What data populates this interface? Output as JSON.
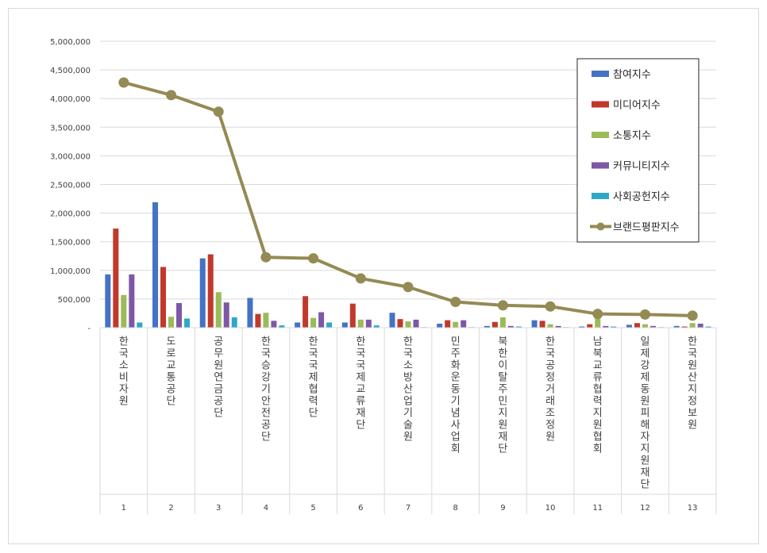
{
  "chart_data": {
    "type": "bar",
    "categories": [
      "한국소비자원",
      "도로교통공단",
      "공무원연금공단",
      "한국승강기안전공단",
      "한국국제협력단",
      "한국국제교류재단",
      "한국소방산업기술원",
      "민주화운동기념사업회",
      "북한이탈주민지원재단",
      "한국공정거래조정원",
      "남북교류협력지원협회",
      "일제강제동원피해자지원재단",
      "한국원산지정보원"
    ],
    "ranks": [
      "1",
      "2",
      "3",
      "4",
      "5",
      "6",
      "7",
      "8",
      "9",
      "10",
      "11",
      "12",
      "13"
    ],
    "y_ticks": [
      "-",
      "500,000",
      "1,000,000",
      "1,500,000",
      "2,000,000",
      "2,500,000",
      "3,000,000",
      "3,500,000",
      "4,000,000",
      "4,500,000",
      "5,000,000"
    ],
    "ylim": [
      0,
      5000000
    ],
    "grid": true,
    "legend_position": "top-right",
    "series": [
      {
        "name": "참여지수",
        "kind": "bar",
        "color": "#4472C4",
        "values": [
          930000,
          2190000,
          1210000,
          520000,
          90000,
          90000,
          260000,
          70000,
          30000,
          130000,
          20000,
          50000,
          30000
        ]
      },
      {
        "name": "미디어지수",
        "kind": "bar",
        "color": "#C0392B",
        "values": [
          1730000,
          1060000,
          1280000,
          240000,
          550000,
          420000,
          150000,
          130000,
          100000,
          120000,
          60000,
          80000,
          20000
        ]
      },
      {
        "name": "소통지수",
        "kind": "bar",
        "color": "#9BBB59",
        "values": [
          570000,
          190000,
          620000,
          260000,
          170000,
          140000,
          110000,
          100000,
          180000,
          60000,
          170000,
          60000,
          80000
        ]
      },
      {
        "name": "커뮤니티지수",
        "kind": "bar",
        "color": "#7E57A6",
        "values": [
          930000,
          430000,
          440000,
          120000,
          270000,
          140000,
          140000,
          130000,
          30000,
          30000,
          30000,
          30000,
          70000
        ]
      },
      {
        "name": "사회공헌지수",
        "kind": "bar",
        "color": "#2EA8C6",
        "values": [
          90000,
          160000,
          180000,
          40000,
          90000,
          40000,
          10000,
          10000,
          20000,
          10000,
          20000,
          10000,
          20000
        ]
      },
      {
        "name": "브랜드평판지수",
        "kind": "line",
        "color": "#948A54",
        "values": [
          4280000,
          4060000,
          3770000,
          1230000,
          1210000,
          860000,
          710000,
          450000,
          390000,
          370000,
          240000,
          230000,
          210000
        ]
      }
    ]
  }
}
